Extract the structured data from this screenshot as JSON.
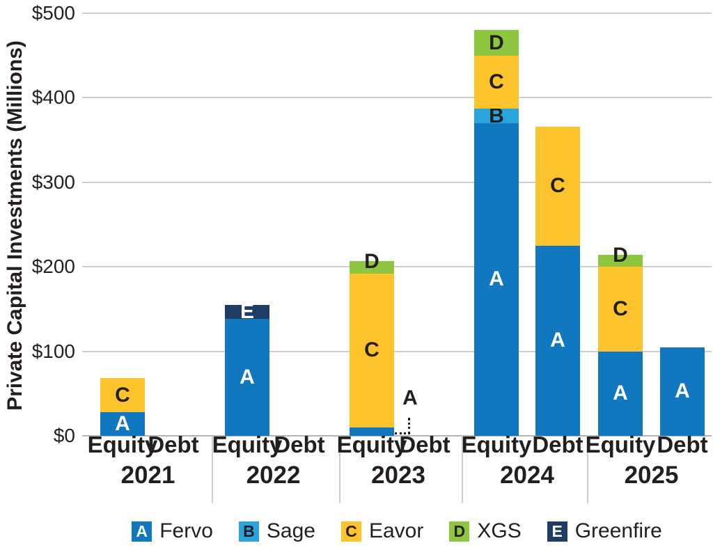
{
  "chart_data": {
    "type": "bar",
    "stacked": true,
    "title": "",
    "ylabel": "Private Capital Investments (Millions)",
    "xlabel": "",
    "ylim": [
      0,
      500
    ],
    "grid": "horizontal",
    "legend_position": "bottom",
    "ytick_values": [
      0,
      100,
      200,
      300,
      400,
      500
    ],
    "ytick_labels": [
      "$0",
      "$100",
      "$200",
      "$300",
      "$400",
      "$500"
    ],
    "series": [
      {
        "key": "A",
        "name": "Fervo",
        "color": "#1178bf",
        "label_color": "#ffffff"
      },
      {
        "key": "B",
        "name": "Sage",
        "color": "#29a4de",
        "label_color": "#231f20"
      },
      {
        "key": "C",
        "name": "Eavor",
        "color": "#fdc32d",
        "label_color": "#231f20"
      },
      {
        "key": "D",
        "name": "XGS",
        "color": "#8ec640",
        "label_color": "#231f20"
      },
      {
        "key": "E",
        "name": "Greenfire",
        "color": "#1f3c64",
        "label_color": "#ffffff"
      }
    ],
    "groups": [
      {
        "year": "2021",
        "bars": [
          {
            "label": "Equity",
            "segments": [
              {
                "series": "A",
                "value": 28
              },
              {
                "series": "C",
                "value": 40
              }
            ]
          },
          {
            "label": "Debt",
            "segments": []
          }
        ]
      },
      {
        "year": "2022",
        "bars": [
          {
            "label": "Equity",
            "segments": [
              {
                "series": "A",
                "value": 138
              },
              {
                "series": "E",
                "value": 17
              }
            ]
          },
          {
            "label": "Debt",
            "segments": []
          }
        ]
      },
      {
        "year": "2023",
        "bars": [
          {
            "label": "Equity",
            "segments": [
              {
                "series": "A",
                "value": 10,
                "annotation": "dotted-leader"
              },
              {
                "series": "C",
                "value": 182
              },
              {
                "series": "D",
                "value": 15
              }
            ]
          },
          {
            "label": "Debt",
            "segments": []
          }
        ]
      },
      {
        "year": "2024",
        "bars": [
          {
            "label": "Equity",
            "segments": [
              {
                "series": "A",
                "value": 370
              },
              {
                "series": "B",
                "value": 17
              },
              {
                "series": "C",
                "value": 63
              },
              {
                "series": "D",
                "value": 30
              }
            ]
          },
          {
            "label": "Debt",
            "segments": [
              {
                "series": "A",
                "value": 225
              },
              {
                "series": "C",
                "value": 141
              }
            ]
          }
        ]
      },
      {
        "year": "2025",
        "bars": [
          {
            "label": "Equity",
            "segments": [
              {
                "series": "A",
                "value": 100
              },
              {
                "series": "C",
                "value": 100
              },
              {
                "series": "D",
                "value": 14
              }
            ]
          },
          {
            "label": "Debt",
            "segments": [
              {
                "series": "A",
                "value": 105
              }
            ]
          }
        ]
      }
    ]
  }
}
